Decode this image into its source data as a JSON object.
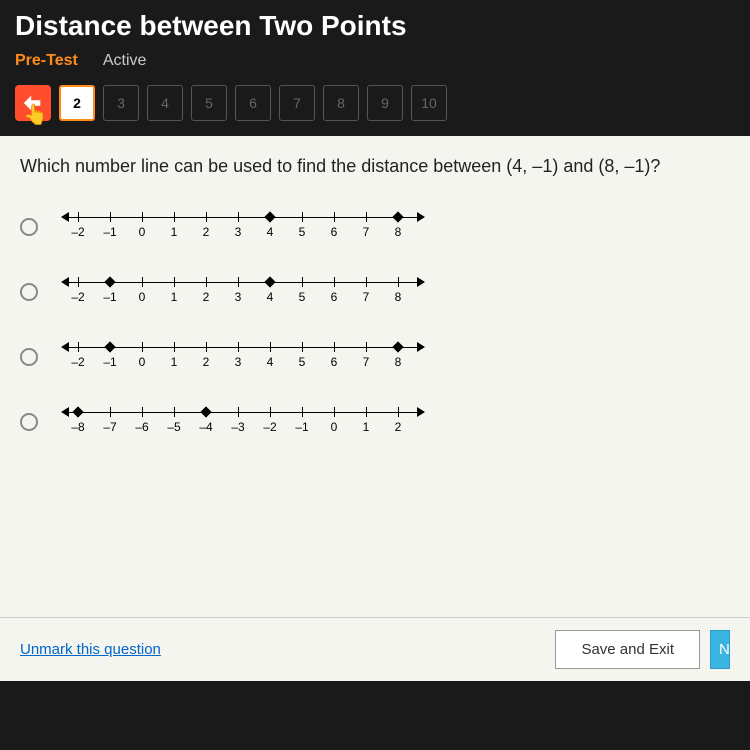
{
  "header": {
    "title": "Distance between Two Points",
    "pretest": "Pre-Test",
    "active": "Active"
  },
  "qnav": {
    "current": "2",
    "items": [
      "3",
      "4",
      "5",
      "6",
      "7",
      "8",
      "9",
      "10"
    ]
  },
  "question": "Which number line can be used to find the distance between (4, –1) and (8, –1)?",
  "numberlines": [
    {
      "labels": [
        "–2",
        "–1",
        "0",
        "1",
        "2",
        "3",
        "4",
        "5",
        "6",
        "7",
        "8"
      ],
      "dots": [
        6,
        10
      ]
    },
    {
      "labels": [
        "–2",
        "–1",
        "0",
        "1",
        "2",
        "3",
        "4",
        "5",
        "6",
        "7",
        "8"
      ],
      "dots": [
        1,
        6
      ]
    },
    {
      "labels": [
        "–2",
        "–1",
        "0",
        "1",
        "2",
        "3",
        "4",
        "5",
        "6",
        "7",
        "8"
      ],
      "dots": [
        1,
        10
      ]
    },
    {
      "labels": [
        "–8",
        "–7",
        "–6",
        "–5",
        "–4",
        "–3",
        "–2",
        "–1",
        "0",
        "1",
        "2"
      ],
      "dots": [
        0,
        4
      ]
    }
  ],
  "footer": {
    "unmark": "Unmark this question",
    "save": "Save and Exit",
    "next": "N"
  },
  "style": {
    "tick_start": 25,
    "tick_step": 32
  }
}
